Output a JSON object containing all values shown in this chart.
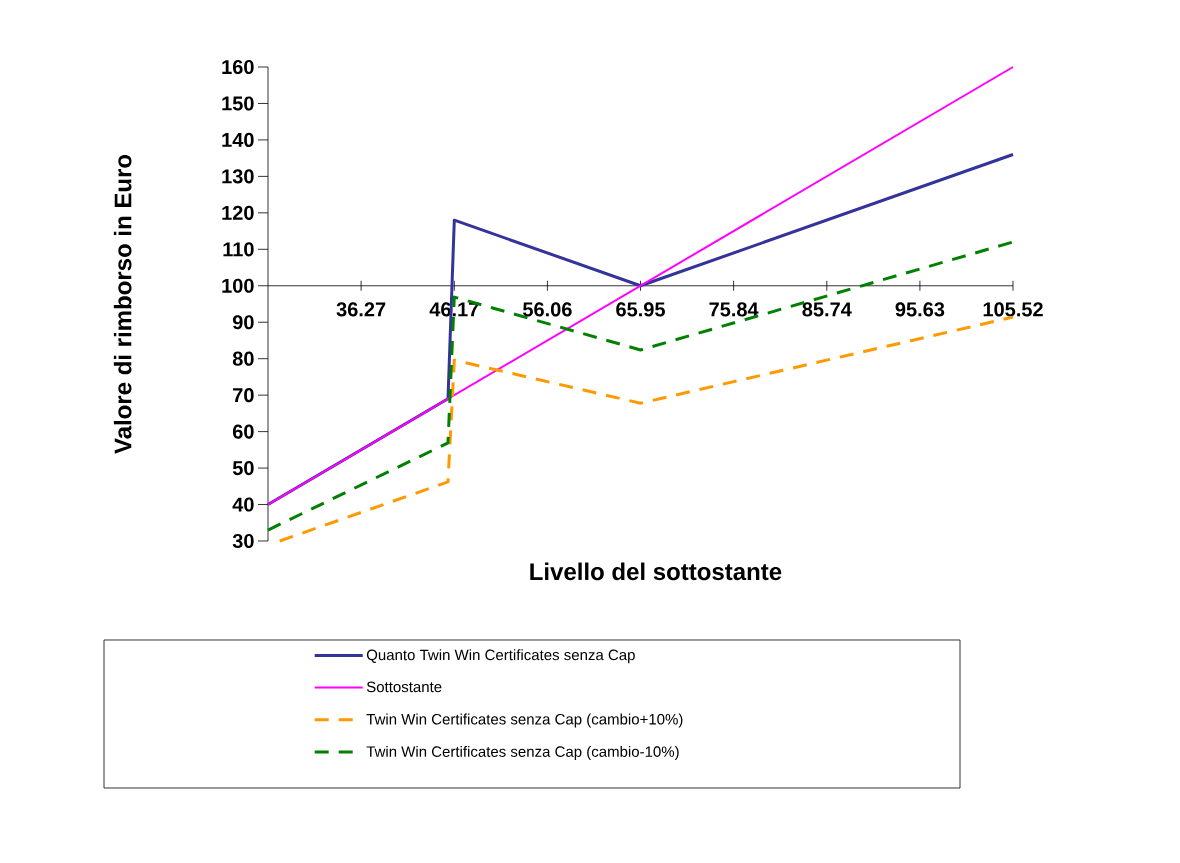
{
  "chart_data": {
    "type": "line",
    "xlabel": "Livello del sottostante",
    "ylabel": "Valore di rimborso in Euro",
    "xlim": [
      26.38,
      105.52
    ],
    "ylim": [
      30,
      160
    ],
    "xticks": [
      36.27,
      46.17,
      56.06,
      65.95,
      75.84,
      85.74,
      95.63,
      105.52
    ],
    "yticks": [
      30,
      40,
      50,
      60,
      70,
      80,
      90,
      100,
      110,
      120,
      130,
      140,
      150,
      160
    ],
    "legend": "bottom",
    "marker": "none",
    "line_style": "solid",
    "series": [
      {
        "name": "Quanto Twin Win Certificates senza Cap",
        "color": "#333399",
        "x": [
          26.38,
          45.5,
          46.17,
          65.95,
          105.52
        ],
        "values": [
          40,
          69,
          118,
          100,
          136
        ]
      },
      {
        "name": "Sottostante",
        "color": "#ff00ff",
        "x": [
          26.38,
          105.52
        ],
        "values": [
          40,
          160
        ]
      },
      {
        "name": "Twin Win Certificates senza Cap (cambio+10%)",
        "color": "#ff9900",
        "line_style": "dashed",
        "x": [
          27.62,
          45.5,
          46.17,
          65.95,
          105.52
        ],
        "values": [
          30,
          46.2,
          79.6,
          67.8,
          91.4
        ]
      },
      {
        "name": "Twin Win Certificates senza Cap (cambio-10%)",
        "color": "#008000",
        "line_style": "dashed",
        "x": [
          26.38,
          45.5,
          46.17,
          65.95,
          105.52
        ],
        "values": [
          33,
          56.9,
          96.9,
          82.4,
          112
        ]
      }
    ]
  }
}
